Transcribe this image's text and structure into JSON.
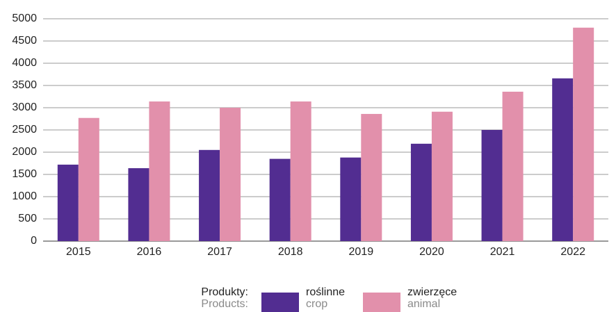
{
  "chart_data": {
    "type": "bar",
    "categories": [
      "2015",
      "2016",
      "2017",
      "2018",
      "2019",
      "2020",
      "2021",
      "2022"
    ],
    "series": [
      {
        "name": "roślinne",
        "name_en": "crop",
        "color": "#522d91",
        "values": [
          1720,
          1640,
          2050,
          1850,
          1880,
          2190,
          2500,
          3660
        ]
      },
      {
        "name": "zwierzęce",
        "name_en": "animal",
        "color": "#e290ab",
        "values": [
          2770,
          3140,
          3000,
          3140,
          2860,
          2910,
          3360,
          4800
        ]
      }
    ],
    "legend_title": "Produkty:",
    "legend_title_en": "Products:",
    "ylim": [
      0,
      5000
    ],
    "yticks": [
      0,
      500,
      1000,
      1500,
      2000,
      2500,
      3000,
      3500,
      4000,
      4500,
      5000
    ],
    "grid": true,
    "legend": "bottom"
  }
}
